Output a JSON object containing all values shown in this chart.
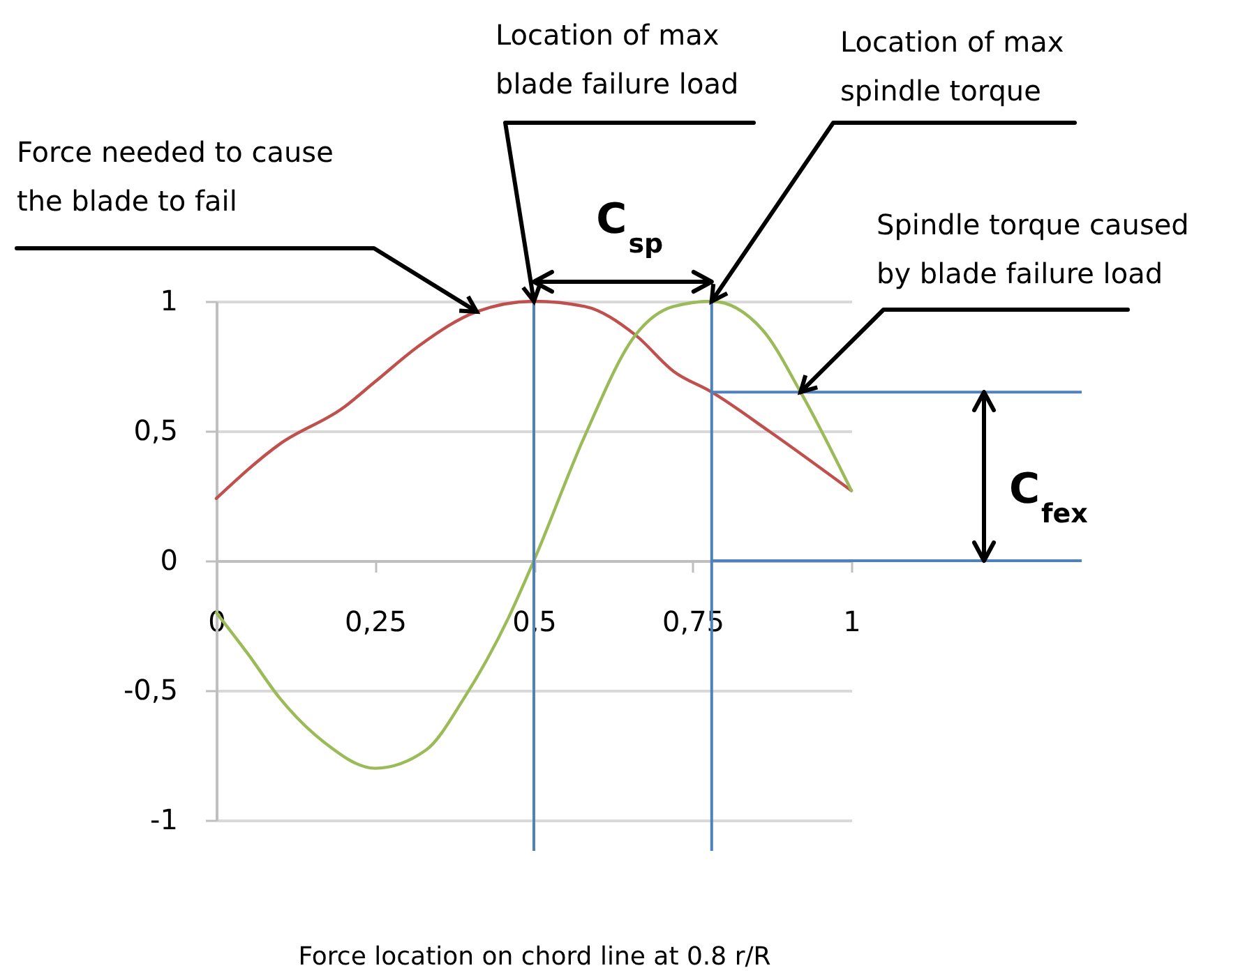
{
  "chart_data": {
    "type": "line",
    "xlabel": "Force location on chord line at 0.8 r/R",
    "xlim": [
      0,
      1
    ],
    "xticks": [
      0,
      {
        "value": 0.25,
        "label": "0,25"
      },
      {
        "value": 0.5,
        "label": "0,5"
      },
      {
        "value": 0.75,
        "label": "0,75"
      },
      1
    ],
    "ylim": [
      -1,
      1
    ],
    "yticks": [
      -1,
      {
        "value": -0.5,
        "label": "-0,5"
      },
      0,
      {
        "value": 0.5,
        "label": "0,5"
      },
      1
    ],
    "grid": "y",
    "series": [
      {
        "color": "#c0504d",
        "x": [
          0,
          0.1,
          0.2,
          0.25,
          0.32,
          0.41,
          0.5,
          0.58,
          0.66,
          0.72,
          0.78,
          0.87,
          1
        ],
        "values": [
          0.24,
          0.45,
          0.59,
          0.69,
          0.83,
          0.96,
          1,
          0.98,
          0.87,
          0.73,
          0.65,
          0.5,
          0.27
        ]
      },
      {
        "color": "#9bbb59",
        "x": [
          0,
          0.05,
          0.1,
          0.17,
          0.25,
          0.33,
          0.39,
          0.46,
          0.5,
          0.58,
          0.66,
          0.72,
          0.78,
          0.86,
          0.92,
          1
        ],
        "values": [
          -0.2,
          -0.36,
          -0.53,
          -0.7,
          -0.8,
          -0.73,
          -0.53,
          -0.22,
          0,
          0.48,
          0.87,
          0.98,
          1,
          0.89,
          0.65,
          0.27
        ]
      }
    ],
    "ref_lines": [
      {
        "axis": "x",
        "value": 0.5,
        "color": "#4f81bd"
      },
      {
        "axis": "x",
        "value": 0.78,
        "color": "#4f81bd"
      },
      {
        "axis": "y",
        "value": 0.65,
        "color": "#4f81bd"
      },
      {
        "axis": "y",
        "value": 0,
        "color": "#4f81bd"
      }
    ],
    "annotations": [
      {
        "text": "Force needed to cause\nthe blade to fail",
        "x": 0.41,
        "y": 0.96
      },
      {
        "text": "Location of max\nblade failure load",
        "x": 0.5,
        "y": 1
      },
      {
        "text": "Location of max\nspindle torque",
        "x": 0.78,
        "y": 1
      },
      {
        "text": "Spindle torque caused\nby blade failure load",
        "x": 0.92,
        "y": 0.65
      },
      "C$_{sp}$",
      "C$_{fex}$"
    ]
  }
}
